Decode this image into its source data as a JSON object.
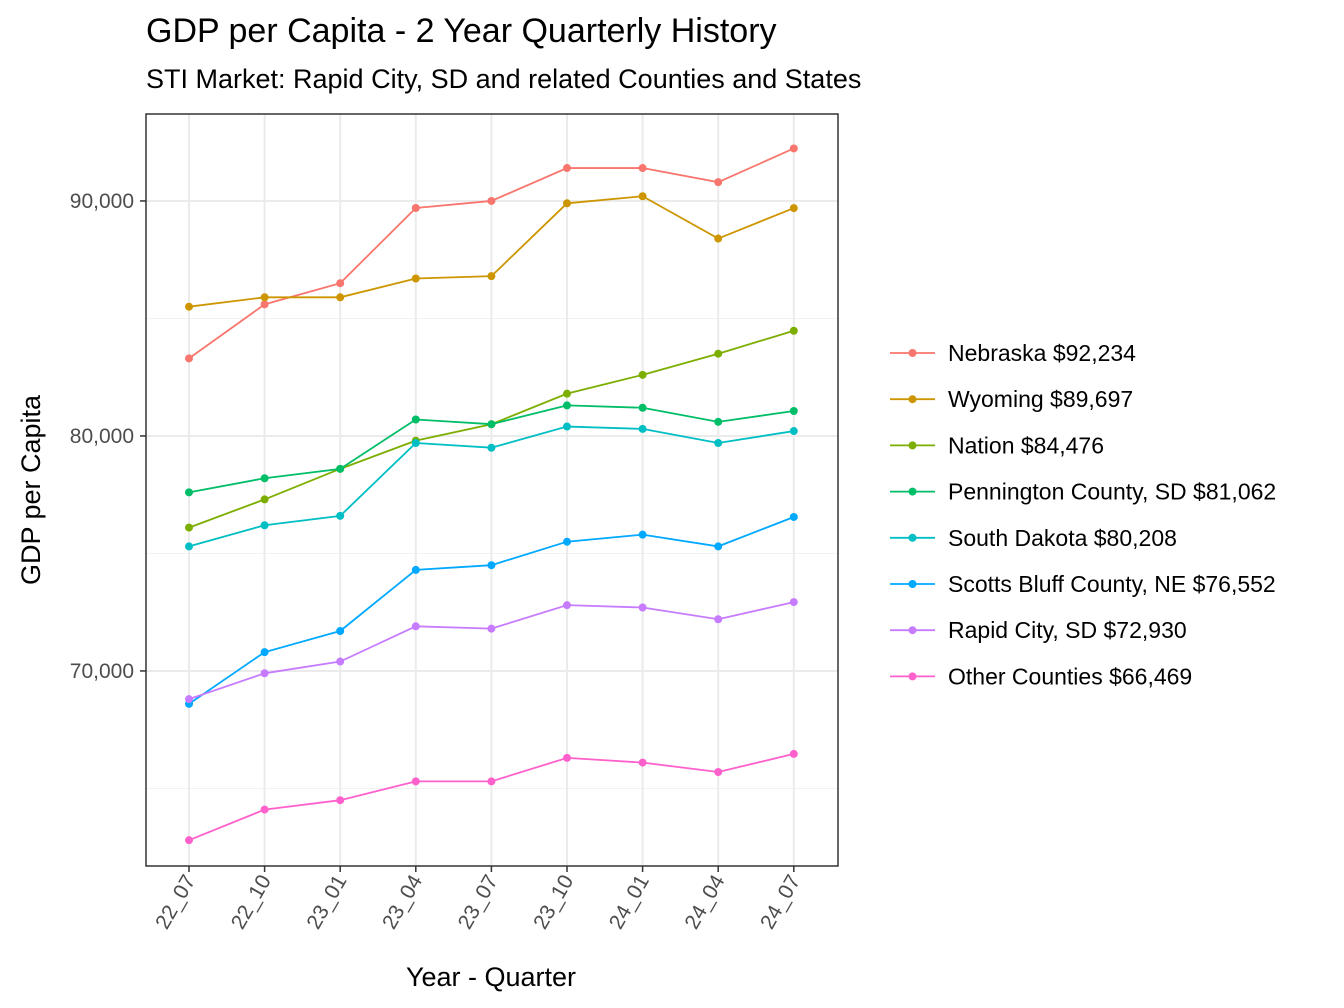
{
  "chart_data": {
    "type": "line",
    "title": "GDP per Capita - 2 Year Quarterly History",
    "subtitle": "STI Market: Rapid City, SD and related Counties and States",
    "xlabel": "Year - Quarter",
    "ylabel": "GDP per Capita",
    "categories": [
      "22_07",
      "22_10",
      "23_01",
      "23_04",
      "23_07",
      "23_10",
      "24_01",
      "24_04",
      "24_07"
    ],
    "ylim": [
      61700,
      93700
    ],
    "yticks": [
      70000,
      80000,
      90000
    ],
    "ytick_labels": [
      "70,000",
      "80,000",
      "90,000"
    ],
    "grid": true,
    "legend_position": "right",
    "series": [
      {
        "name": "Nebraska $92,234",
        "color": "#F8766D",
        "values": [
          83300,
          85600,
          86500,
          89700,
          90000,
          91400,
          91400,
          90800,
          92234
        ]
      },
      {
        "name": "Wyoming $89,697",
        "color": "#CD9600",
        "values": [
          85500,
          85900,
          85900,
          86700,
          86800,
          89900,
          90200,
          88400,
          89697
        ]
      },
      {
        "name": "Nation $84,476",
        "color": "#7CAE00",
        "values": [
          76100,
          77300,
          78600,
          79800,
          80500,
          81800,
          82600,
          83500,
          84476
        ]
      },
      {
        "name": "Pennington County, SD $81,062",
        "color": "#00BE67",
        "values": [
          77600,
          78200,
          78600,
          80700,
          80500,
          81300,
          81200,
          80600,
          81062
        ]
      },
      {
        "name": "South Dakota $80,208",
        "color": "#00BFC4",
        "values": [
          75300,
          76200,
          76600,
          79700,
          79500,
          80400,
          80300,
          79700,
          80208
        ]
      },
      {
        "name": "Scotts Bluff County, NE $76,552",
        "color": "#00A9FF",
        "values": [
          68600,
          70800,
          71700,
          74300,
          74500,
          75500,
          75800,
          75300,
          76552
        ]
      },
      {
        "name": "Rapid City, SD $72,930",
        "color": "#C77CFF",
        "values": [
          68800,
          69900,
          70400,
          71900,
          71800,
          72800,
          72700,
          72200,
          72930
        ]
      },
      {
        "name": "Other Counties $66,469",
        "color": "#FF61CC",
        "values": [
          62800,
          64100,
          64500,
          65300,
          65300,
          66300,
          66100,
          65700,
          66469
        ]
      }
    ]
  }
}
